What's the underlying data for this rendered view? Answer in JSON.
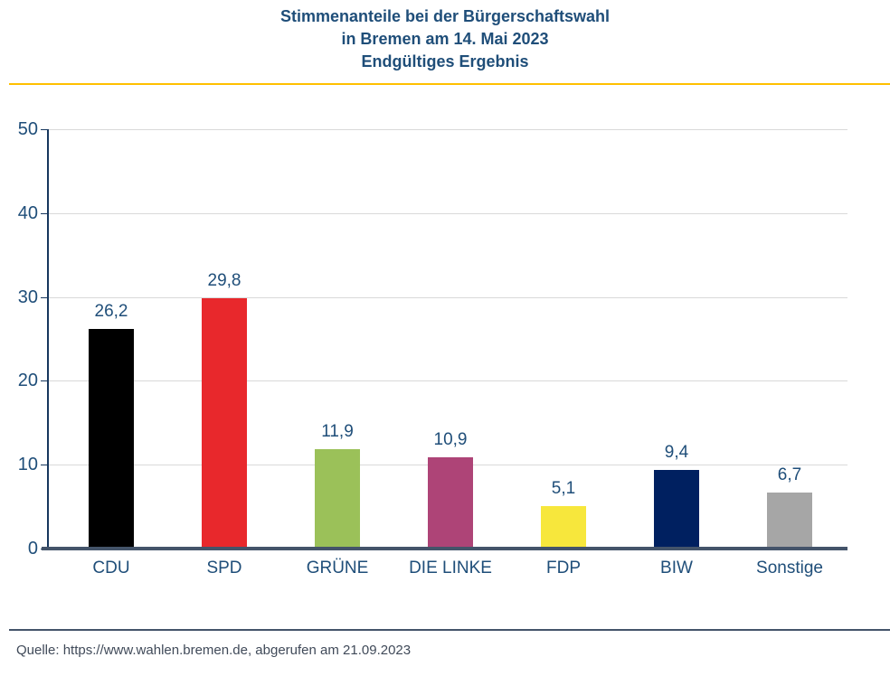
{
  "title": {
    "lines": [
      "Stimmenanteile bei der Bürgerschaftswahl",
      "in Bremen am 14. Mai 2023",
      "Endgültiges Ergebnis"
    ],
    "color": "#1F4E79"
  },
  "divider_color": "#FFC000",
  "chart_data": {
    "type": "bar",
    "title": "Stimmenanteile bei der Bürgerschaftswahl in Bremen am 14. Mai 2023 — Endgültiges Ergebnis",
    "categories": [
      "CDU",
      "SPD",
      "GRÜNE",
      "DIE LINKE",
      "FDP",
      "BIW",
      "Sonstige"
    ],
    "values": [
      26.2,
      29.8,
      11.9,
      10.9,
      5.1,
      9.4,
      6.7
    ],
    "value_labels": [
      "26,2",
      "29,8",
      "11,9",
      "10,9",
      "5,1",
      "9,4",
      "6,7"
    ],
    "bar_colors": [
      "#000000",
      "#E8282C",
      "#9BC159",
      "#AE4477",
      "#F7E73C",
      "#002060",
      "#A6A6A6"
    ],
    "xlabel": "",
    "ylabel": "",
    "ylim": [
      0,
      50
    ],
    "yticks": [
      0,
      10,
      20,
      30,
      40,
      50
    ],
    "ytick_labels": [
      "0",
      "10",
      "20",
      "30",
      "40",
      "50"
    ],
    "grid": true,
    "legend": "none",
    "gridline_color": "#D9D9D9",
    "axis_color": "#44546A",
    "label_color": "#1F4E79"
  },
  "footer": {
    "source": "Quelle: https://www.wahlen.bremen.de, abgerufen am 21.09.2023"
  }
}
